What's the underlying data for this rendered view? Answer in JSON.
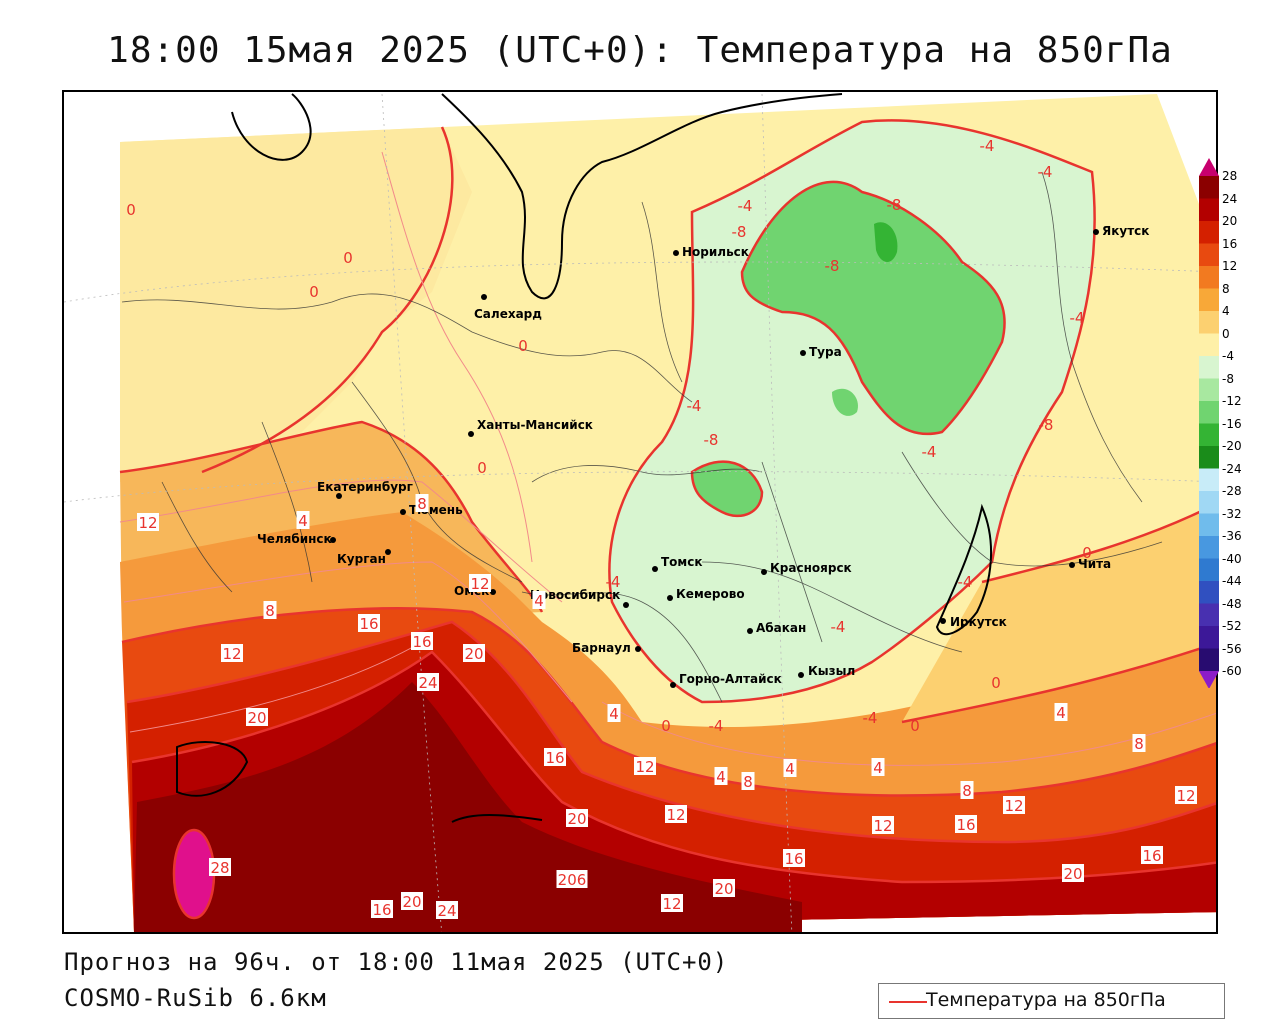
{
  "title": "18:00 15мая 2025 (UTC+0): Температура на 850гПа",
  "footer": {
    "forecast": "Прогноз на 96ч. от 18:00 11мая 2025 (UTC+0)",
    "model": "COSMO-RuSib 6.6км"
  },
  "legend": {
    "label": "Температура на 850гПа",
    "line_color": "#e8342e"
  },
  "colorbar": {
    "labels": [
      "28",
      "24",
      "20",
      "16",
      "12",
      "8",
      "4",
      "0",
      "-4",
      "-8",
      "-12",
      "-16",
      "-20",
      "-24",
      "-28",
      "-32",
      "-36",
      "-40",
      "-44",
      "-48",
      "-52",
      "-56",
      "-60"
    ],
    "colors": [
      "#c8006e",
      "#8b0000",
      "#b30000",
      "#d42000",
      "#e84a10",
      "#f27a20",
      "#f8a838",
      "#fcd070",
      "#fef0a8",
      "#d8f5d0",
      "#a8e8a0",
      "#70d470",
      "#34b434",
      "#1a8c1a",
      "#c8ecf8",
      "#a0d8f4",
      "#70bcec",
      "#4898e0",
      "#2f7ad0",
      "#3050c0",
      "#4830b0",
      "#3c1898",
      "#280c70",
      "#8c1cc8"
    ]
  },
  "cities": [
    {
      "name": "Норильск"
    },
    {
      "name": "Якутск"
    },
    {
      "name": "Салехард"
    },
    {
      "name": "Тура"
    },
    {
      "name": "Ханты-Мансийск"
    },
    {
      "name": "Екатеринбург"
    },
    {
      "name": "Тюмень"
    },
    {
      "name": "Челябинск"
    },
    {
      "name": "Курган"
    },
    {
      "name": "Омск"
    },
    {
      "name": "Новосибирск"
    },
    {
      "name": "Томск"
    },
    {
      "name": "Красноярск"
    },
    {
      "name": "Кемерово"
    },
    {
      "name": "Абакан"
    },
    {
      "name": "Барнаул"
    },
    {
      "name": "Горно-Алтайск"
    },
    {
      "name": "Кызыл"
    },
    {
      "name": "Иркутск"
    },
    {
      "name": "Чита"
    }
  ],
  "isotherm_labels": [
    {
      "text": "-4",
      "kind": "cold"
    },
    {
      "text": "-4",
      "kind": "cold"
    },
    {
      "text": "-8",
      "kind": "cold"
    },
    {
      "text": "-4",
      "kind": "cold"
    },
    {
      "text": "-8",
      "kind": "cold"
    },
    {
      "text": "-8",
      "kind": "cold"
    },
    {
      "text": "-4",
      "kind": "cold"
    },
    {
      "text": "-4",
      "kind": "cold"
    },
    {
      "text": "-8",
      "kind": "cold"
    },
    {
      "text": "-8",
      "kind": "cold"
    },
    {
      "text": "-4",
      "kind": "cold"
    },
    {
      "text": "-4",
      "kind": "cold"
    },
    {
      "text": "-4",
      "kind": "cold"
    },
    {
      "text": "-4",
      "kind": "cold"
    },
    {
      "text": "-4",
      "kind": "cold"
    },
    {
      "text": "-4",
      "kind": "cold"
    },
    {
      "text": "0",
      "kind": "cold"
    },
    {
      "text": "0",
      "kind": "cold"
    },
    {
      "text": "0",
      "kind": "cold"
    },
    {
      "text": "0",
      "kind": "cold"
    },
    {
      "text": "0",
      "kind": "cold"
    },
    {
      "text": "0",
      "kind": "cold"
    },
    {
      "text": "0",
      "kind": "cold"
    },
    {
      "text": "0",
      "kind": "cold"
    },
    {
      "text": "0",
      "kind": "cold"
    },
    {
      "text": "4",
      "kind": "warm"
    },
    {
      "text": "4",
      "kind": "warm"
    },
    {
      "text": "4",
      "kind": "warm"
    },
    {
      "text": "4",
      "kind": "warm"
    },
    {
      "text": "4",
      "kind": "warm"
    },
    {
      "text": "4",
      "kind": "warm"
    },
    {
      "text": "4",
      "kind": "warm"
    },
    {
      "text": "8",
      "kind": "warm"
    },
    {
      "text": "8",
      "kind": "warm"
    },
    {
      "text": "8",
      "kind": "warm"
    },
    {
      "text": "8",
      "kind": "warm"
    },
    {
      "text": "8",
      "kind": "warm"
    },
    {
      "text": "12",
      "kind": "warm"
    },
    {
      "text": "12",
      "kind": "warm"
    },
    {
      "text": "12",
      "kind": "warm"
    },
    {
      "text": "12",
      "kind": "warm"
    },
    {
      "text": "12",
      "kind": "warm"
    },
    {
      "text": "12",
      "kind": "warm"
    },
    {
      "text": "12",
      "kind": "warm"
    },
    {
      "text": "12",
      "kind": "warm"
    },
    {
      "text": "12",
      "kind": "warm"
    },
    {
      "text": "16",
      "kind": "warm"
    },
    {
      "text": "16",
      "kind": "warm"
    },
    {
      "text": "16",
      "kind": "warm"
    },
    {
      "text": "16",
      "kind": "warm"
    },
    {
      "text": "16",
      "kind": "warm"
    },
    {
      "text": "16",
      "kind": "warm"
    },
    {
      "text": "16",
      "kind": "warm"
    },
    {
      "text": "20",
      "kind": "warm"
    },
    {
      "text": "20",
      "kind": "warm"
    },
    {
      "text": "20",
      "kind": "warm"
    },
    {
      "text": "20",
      "kind": "warm"
    },
    {
      "text": "20",
      "kind": "warm"
    },
    {
      "text": "20",
      "kind": "warm"
    },
    {
      "text": "206",
      "kind": "warm"
    },
    {
      "text": "24",
      "kind": "warm"
    },
    {
      "text": "24",
      "kind": "warm"
    },
    {
      "text": "28",
      "kind": "warm"
    }
  ]
}
